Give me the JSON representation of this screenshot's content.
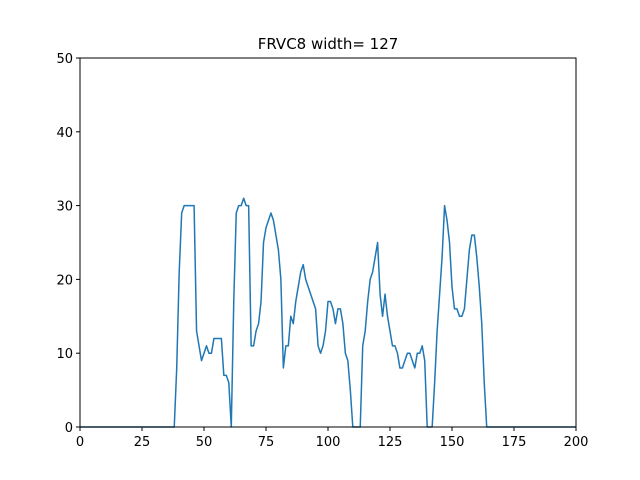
{
  "chart_data": {
    "type": "line",
    "title": "FRVC8 width= 127",
    "x": [
      0,
      1,
      2,
      3,
      4,
      5,
      6,
      7,
      8,
      9,
      10,
      11,
      12,
      13,
      14,
      15,
      16,
      17,
      18,
      19,
      20,
      21,
      22,
      23,
      24,
      25,
      26,
      27,
      28,
      29,
      30,
      31,
      32,
      33,
      34,
      35,
      36,
      37,
      38,
      39,
      40,
      41,
      42,
      43,
      44,
      45,
      46,
      47,
      48,
      49,
      50,
      51,
      52,
      53,
      54,
      55,
      56,
      57,
      58,
      59,
      60,
      61,
      62,
      63,
      64,
      65,
      66,
      67,
      68,
      69,
      70,
      71,
      72,
      73,
      74,
      75,
      76,
      77,
      78,
      79,
      80,
      81,
      82,
      83,
      84,
      85,
      86,
      87,
      88,
      89,
      90,
      91,
      92,
      93,
      94,
      95,
      96,
      97,
      98,
      99,
      100,
      101,
      102,
      103,
      104,
      105,
      106,
      107,
      108,
      109,
      110,
      111,
      112,
      113,
      114,
      115,
      116,
      117,
      118,
      119,
      120,
      121,
      122,
      123,
      124,
      125,
      126,
      127,
      128,
      129,
      130,
      131,
      132,
      133,
      134,
      135,
      136,
      137,
      138,
      139,
      140,
      141,
      142,
      143,
      144,
      145,
      146,
      147,
      148,
      149,
      150,
      151,
      152,
      153,
      154,
      155,
      156,
      157,
      158,
      159,
      160,
      161,
      162,
      163,
      164,
      165,
      166,
      167,
      168,
      169,
      170,
      171,
      172,
      173,
      174,
      175,
      176,
      177,
      178,
      179,
      180,
      181,
      182,
      183,
      184,
      185,
      186,
      187,
      188,
      189,
      190,
      191,
      192,
      193,
      194,
      195,
      196,
      197,
      198,
      199,
      200
    ],
    "series": [
      {
        "color": "#1f77b4",
        "values": [
          0,
          0,
          0,
          0,
          0,
          0,
          0,
          0,
          0,
          0,
          0,
          0,
          0,
          0,
          0,
          0,
          0,
          0,
          0,
          0,
          0,
          0,
          0,
          0,
          0,
          0,
          0,
          0,
          0,
          0,
          0,
          0,
          0,
          0,
          0,
          0,
          0,
          0,
          0,
          8,
          21,
          29,
          30,
          30,
          30,
          30,
          30,
          13,
          11,
          9,
          10,
          11,
          10,
          10,
          12,
          12,
          12,
          12,
          7,
          7,
          6,
          0,
          17,
          29,
          30,
          30,
          31,
          30,
          30,
          11,
          11,
          13,
          14,
          17,
          25,
          27,
          28,
          29,
          28,
          26,
          24,
          20,
          8,
          11,
          11,
          15,
          14,
          17,
          19,
          21,
          22,
          20,
          19,
          18,
          17,
          16,
          11,
          10,
          11,
          13,
          17,
          17,
          16,
          14,
          16,
          16,
          14,
          10,
          9,
          5,
          0,
          0,
          0,
          0,
          11,
          13,
          17,
          20,
          21,
          23,
          25,
          18,
          15,
          18,
          15,
          13,
          11,
          11,
          10,
          8,
          8,
          9,
          10,
          10,
          9,
          8,
          10,
          10,
          11,
          9,
          0,
          0,
          0,
          6,
          13,
          18,
          23,
          30,
          28,
          25,
          19,
          16,
          16,
          15,
          15,
          16,
          20,
          24,
          26,
          26,
          23,
          19,
          14,
          6,
          0,
          0,
          0,
          0,
          0,
          0,
          0,
          0,
          0,
          0,
          0,
          0,
          0,
          0,
          0,
          0,
          0,
          0,
          0,
          0,
          0,
          0,
          0,
          0,
          0,
          0,
          0,
          0,
          0,
          0,
          0,
          0,
          0,
          0,
          0,
          0,
          0
        ]
      }
    ],
    "xlim": [
      0,
      200
    ],
    "xticks": [
      0,
      25,
      50,
      75,
      100,
      125,
      150,
      175,
      200
    ],
    "ylim": [
      0,
      50
    ],
    "yticks": [
      0,
      10,
      20,
      30,
      40,
      50
    ]
  }
}
